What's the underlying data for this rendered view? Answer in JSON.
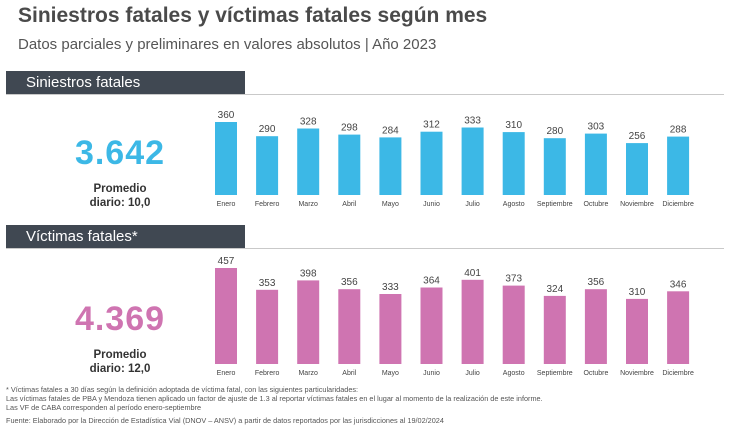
{
  "header": {
    "title": "Siniestros fatales y víctimas fatales según mes",
    "subtitle": "Datos parciales y preliminares en valores absolutos | Año 2023"
  },
  "sections": [
    {
      "label": "Siniestros fatales",
      "total": "3.642",
      "avg_label": "Promedio",
      "avg_value": "diario: 10,0",
      "color": "#3cb8e6"
    },
    {
      "label": "Víctimas fatales*",
      "total": "4.369",
      "avg_label": "Promedio",
      "avg_value": "diario: 12,0",
      "color": "#cf74b1"
    }
  ],
  "chart_data": [
    {
      "type": "bar",
      "categories": [
        "Enero",
        "Febrero",
        "Marzo",
        "Abril",
        "Mayo",
        "Junio",
        "Julio",
        "Agosto",
        "Septiembre",
        "Octubre",
        "Noviembre",
        "Diciembre"
      ],
      "values": [
        360,
        290,
        328,
        298,
        284,
        312,
        333,
        310,
        280,
        303,
        256,
        288
      ],
      "title": "Siniestros fatales",
      "ylim": [
        0,
        360
      ],
      "grid": false,
      "color": "#3cb8e6"
    },
    {
      "type": "bar",
      "categories": [
        "Enero",
        "Febrero",
        "Marzo",
        "Abril",
        "Mayo",
        "Junio",
        "Julio",
        "Agosto",
        "Septiembre",
        "Octubre",
        "Noviembre",
        "Diciembre"
      ],
      "values": [
        457,
        353,
        398,
        356,
        333,
        364,
        401,
        373,
        324,
        356,
        310,
        346
      ],
      "title": "Víctimas fatales*",
      "ylim": [
        0,
        457
      ],
      "grid": false,
      "color": "#cf74b1"
    }
  ],
  "footnotes": [
    "* Víctimas fatales a 30 días según la definición adoptada de víctima fatal, con las siguientes particularidades:",
    "Las víctimas fatales de PBA y Mendoza tienen aplicado un factor de ajuste de 1.3 al reportar víctimas fatales en el lugar al momento de la realización de este informe.",
    "Las VF de CABA corresponden al período enero-septiembre"
  ],
  "source": "Fuente: Elaborado por la Dirección de Estadística Vial (DNOV – ANSV) a partir de datos reportados por las jurisdicciones al 19/02/2024"
}
